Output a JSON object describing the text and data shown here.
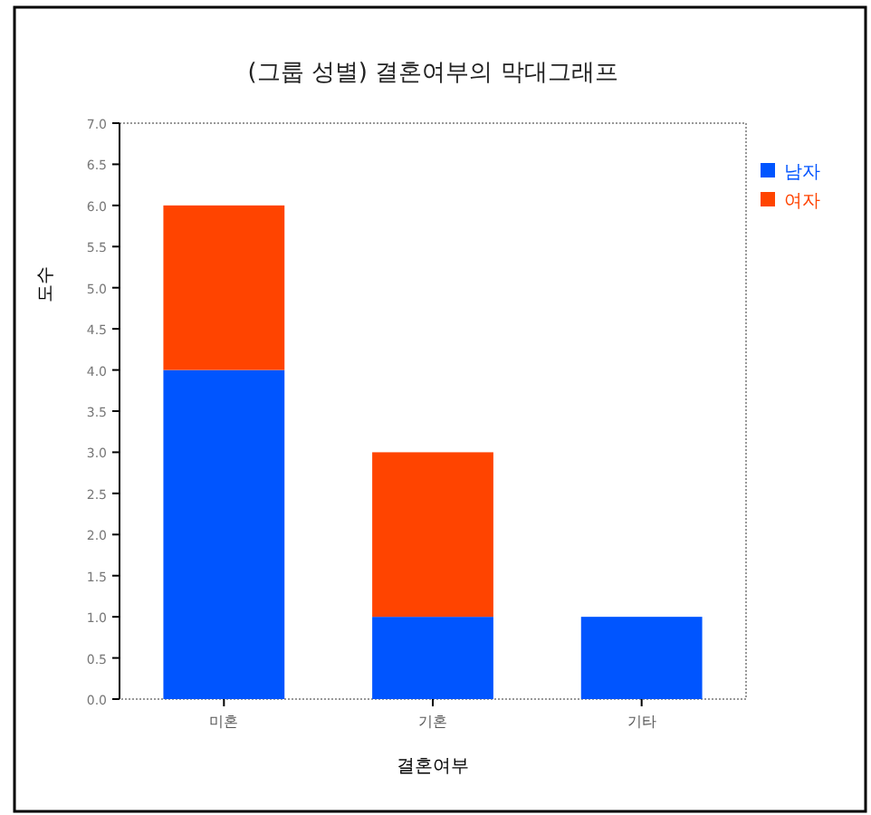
{
  "chart_data": {
    "type": "bar",
    "stacked": true,
    "title": "(그룹 성별) 결혼여부의 막대그래프",
    "xlabel": "결혼여부",
    "ylabel": "도수",
    "categories": [
      "미혼",
      "기혼",
      "기타"
    ],
    "series": [
      {
        "name": "남자",
        "color": "#0055ff",
        "values": [
          4,
          1,
          1
        ]
      },
      {
        "name": "여자",
        "color": "#ff4400",
        "values": [
          2,
          2,
          0
        ]
      }
    ],
    "ylim": [
      0,
      7
    ],
    "yticks": [
      {
        "value": 0,
        "label": "0.0"
      },
      {
        "value": 0.5,
        "label": "0.5"
      },
      {
        "value": 1,
        "label": "1.0"
      },
      {
        "value": 1.5,
        "label": "1.5"
      },
      {
        "value": 2,
        "label": "2.0"
      },
      {
        "value": 2.5,
        "label": "2.5"
      },
      {
        "value": 3,
        "label": "3.0"
      },
      {
        "value": 3.5,
        "label": "3.5"
      },
      {
        "value": 4,
        "label": "4.0"
      },
      {
        "value": 4.5,
        "label": "4.5"
      },
      {
        "value": 5,
        "label": "5.0"
      },
      {
        "value": 5.5,
        "label": "5.5"
      },
      {
        "value": 6,
        "label": "6.0"
      },
      {
        "value": 6.5,
        "label": "6.5"
      },
      {
        "value": 7,
        "label": "7.0"
      }
    ],
    "legend": "right"
  }
}
